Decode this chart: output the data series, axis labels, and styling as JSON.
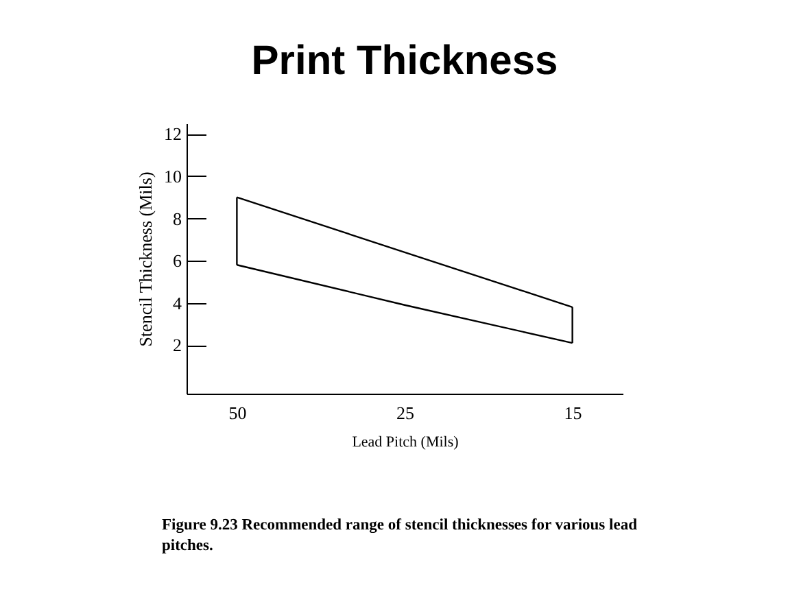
{
  "chart_data": {
    "type": "line",
    "title": "Print Thickness",
    "xlabel": "Lead Pitch (Mils)",
    "ylabel": "Stencil Thickness (Mils)",
    "categories": [
      "50",
      "25",
      "15"
    ],
    "series": [
      {
        "color": "#000000",
        "values": [
          9.0,
          6.4,
          3.8
        ]
      },
      {
        "color": "#000000",
        "values": [
          5.8,
          3.9,
          2.1
        ]
      },
      {
        "color": "#000000",
        "x": [
          "50",
          "50"
        ],
        "values": [
          5.8,
          9.0
        ]
      },
      {
        "color": "#000000",
        "x": [
          "15",
          "15"
        ],
        "values": [
          2.1,
          3.8
        ]
      }
    ],
    "ylim": [
      -0.3,
      12.5
    ],
    "yticks": [
      2,
      4,
      6,
      8,
      10,
      12
    ],
    "annotations": [
      "Figure 9.23  Recommended range of stencil thicknesses for various lead pitches."
    ]
  }
}
